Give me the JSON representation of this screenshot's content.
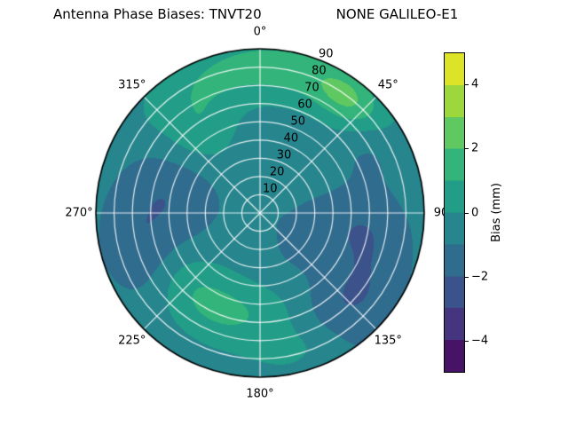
{
  "header": {
    "title_left": "Antenna Phase Biases: TNVT20",
    "title_right": "NONE GALILEO-E1"
  },
  "chart_data": {
    "type": "heatmap",
    "projection": "polar",
    "title": "Antenna Phase Biases: TNVT20          NONE GALILEO-E1",
    "r_max": 90,
    "radial_ticks": [
      10,
      20,
      30,
      40,
      50,
      60,
      70,
      80,
      90
    ],
    "radial_tick_angle_deg": 22.5,
    "angular_ticks": [
      {
        "angle": 0,
        "label": "0°"
      },
      {
        "angle": 45,
        "label": "45°"
      },
      {
        "angle": 90,
        "label": "90"
      },
      {
        "angle": 135,
        "label": "135°"
      },
      {
        "angle": 180,
        "label": "180°"
      },
      {
        "angle": 225,
        "label": "225°"
      },
      {
        "angle": 270,
        "label": "270°"
      },
      {
        "angle": 315,
        "label": "315°"
      }
    ],
    "grid": true,
    "legend_position": "right-colorbar",
    "colorbar": {
      "label": "Bias (mm)",
      "range": [
        -5,
        5
      ],
      "ticks": [
        {
          "value": 4,
          "label": "4"
        },
        {
          "value": 2,
          "label": "2"
        },
        {
          "value": 0,
          "label": "0"
        },
        {
          "value": -2,
          "label": "−2"
        },
        {
          "value": -4,
          "label": "−4"
        }
      ],
      "colormap": "viridis",
      "colormap_stops": [
        "#440154",
        "#482475",
        "#414487",
        "#355f8d",
        "#2a788e",
        "#21918c",
        "#22a884",
        "#44bf70",
        "#7ad151",
        "#bddf26",
        "#fde725"
      ]
    },
    "contour_level_step": 1,
    "base_value": -0.55,
    "features": [
      {
        "sector": "north-outer-green-arc",
        "theta": 8,
        "r": 80,
        "amp": 2.0,
        "sigma_theta": 38,
        "sigma_r": 13
      },
      {
        "sector": "northeast-bright-green-spot",
        "theta": 37,
        "r": 79,
        "amp": 1.5,
        "sigma_theta": 10,
        "sigma_r": 9
      },
      {
        "sector": "northwest-green-patch",
        "theta": 323,
        "r": 56,
        "amp": 1.5,
        "sigma_theta": 16,
        "sigma_r": 14
      },
      {
        "sector": "west-dark-blue-band",
        "theta": 277,
        "r": 54,
        "amp": -1.6,
        "sigma_theta": 26,
        "sigma_r": 20
      },
      {
        "sector": "west-southwest-dark-outer",
        "theta": 250,
        "r": 68,
        "amp": -1.0,
        "sigma_theta": 14,
        "sigma_r": 14
      },
      {
        "sector": "south-southwest-green-arc",
        "theta": 207,
        "r": 56,
        "amp": 1.9,
        "sigma_theta": 33,
        "sigma_r": 14
      },
      {
        "sector": "south-outer-green",
        "theta": 160,
        "r": 78,
        "amp": 0.9,
        "sigma_theta": 15,
        "sigma_r": 10
      },
      {
        "sector": "southeast-dark-patch",
        "theta": 138,
        "r": 70,
        "amp": -1.6,
        "sigma_theta": 17,
        "sigma_r": 16
      },
      {
        "sector": "east-dark-patch",
        "theta": 100,
        "r": 58,
        "amp": -1.4,
        "sigma_theta": 18,
        "sigma_r": 18
      },
      {
        "sector": "east-northeast-dark-notch",
        "theta": 60,
        "r": 72,
        "amp": -0.9,
        "sigma_theta": 11,
        "sigma_r": 12
      },
      {
        "sector": "inner-southeast-slight-dark",
        "theta": 120,
        "r": 25,
        "amp": -0.7,
        "sigma_theta": 35,
        "sigma_r": 14
      }
    ]
  },
  "colors": {
    "background": "#ffffff",
    "grid_lines": "#ffffff",
    "outline": "#000000",
    "teal_background_band": "#25848d",
    "green_band": "#31b57a",
    "dark_blue_band": "#3b518a"
  }
}
